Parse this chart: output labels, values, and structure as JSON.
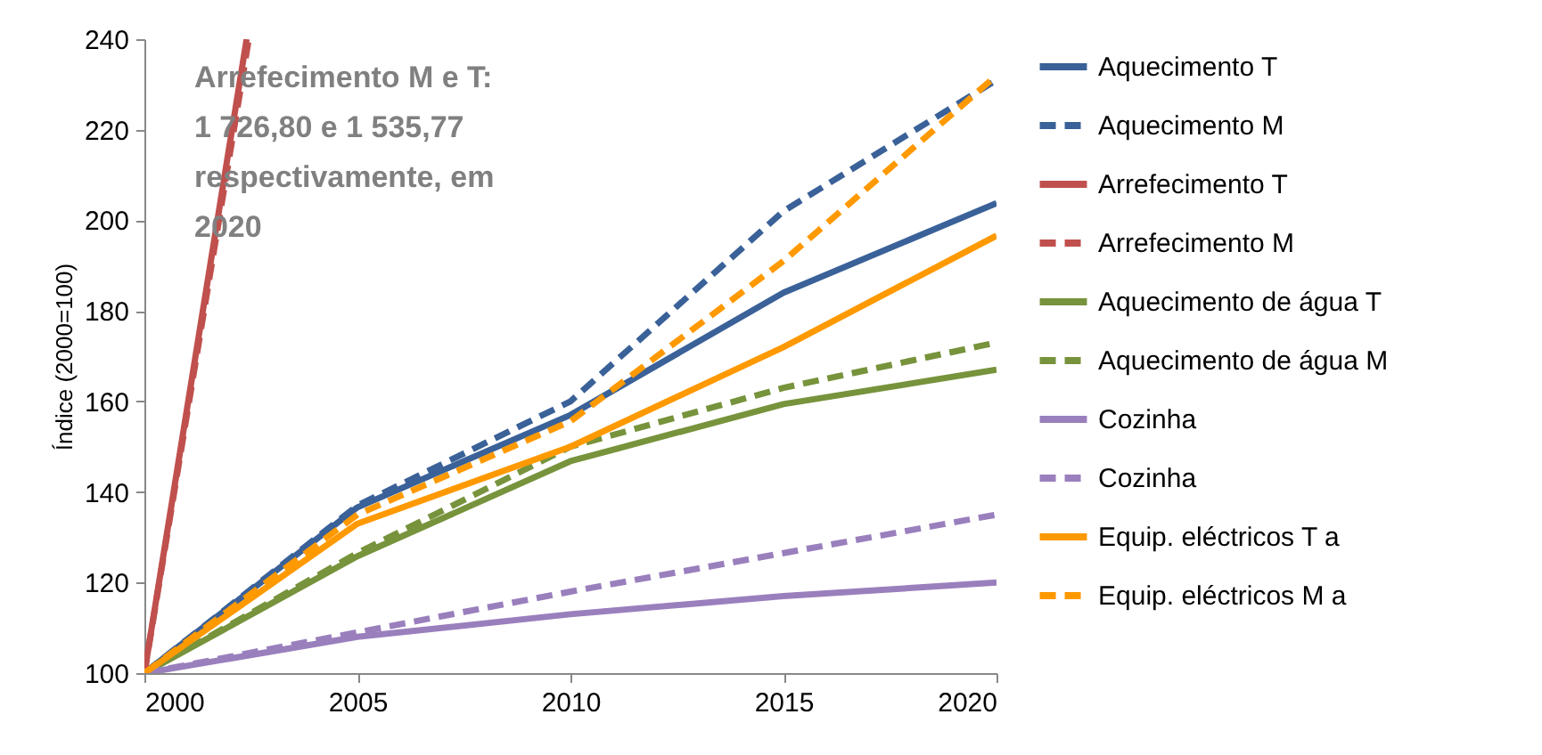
{
  "chart_data": {
    "type": "line",
    "ylabel": "Índice (2000=100)",
    "x": [
      2000,
      2005,
      2010,
      2015,
      2020
    ],
    "xlim": [
      2000,
      2020
    ],
    "xticks": [
      2000,
      2005,
      2010,
      2015,
      2020
    ],
    "ylim": [
      100,
      240
    ],
    "yticks": [
      100,
      120,
      140,
      160,
      180,
      200,
      220,
      240
    ],
    "grid": false,
    "legend": "right",
    "marker": "none",
    "annotations": [
      "Arrefecimento M e T:\n1 726,80 e 1 535,77\nrespectivamente, em\n2020"
    ],
    "series": [
      {
        "name": "Aquecimento T",
        "color": "#3a6198",
        "line_style": "solid",
        "values": [
          100,
          136.6,
          157,
          184,
          203.8
        ]
      },
      {
        "name": "Aquecimento M",
        "color": "#3a6198",
        "line_style": "dashed",
        "values": [
          100,
          137,
          160,
          202,
          231
        ]
      },
      {
        "name": "Arrefecimento  T",
        "color": "#c0504d",
        "line_style": "solid",
        "x": [
          2000,
          2002.4
        ],
        "values": [
          100,
          240
        ]
      },
      {
        "name": "Arrefecimento  M",
        "color": "#c0504d",
        "line_style": "dashed",
        "x": [
          2000,
          2002.45
        ],
        "values": [
          100,
          240
        ]
      },
      {
        "name": "Aquecimento de água T",
        "color": "#77933c",
        "line_style": "solid",
        "values": [
          100,
          125.8,
          146.8,
          159.4,
          167
        ]
      },
      {
        "name": "Aquecimento de água M",
        "color": "#77933c",
        "line_style": "dashed",
        "values": [
          100,
          126.5,
          150,
          163,
          173
        ]
      },
      {
        "name": "Cozinha",
        "color": "#9a7fbd",
        "line_style": "solid",
        "values": [
          100,
          108,
          113,
          117,
          120
        ]
      },
      {
        "name": "Cozinha",
        "color": "#9a7fbd",
        "line_style": "dashed",
        "values": [
          100,
          109,
          118,
          126.5,
          135
        ]
      },
      {
        "name": "Equip. eléctricos T a",
        "color": "#ff9900",
        "line_style": "solid",
        "values": [
          100,
          133,
          150,
          172,
          196.6
        ]
      },
      {
        "name": "Equip. eléctricos M a",
        "color": "#ff9900",
        "line_style": "dashed",
        "values": [
          100,
          135,
          155.6,
          191,
          232
        ]
      }
    ]
  }
}
